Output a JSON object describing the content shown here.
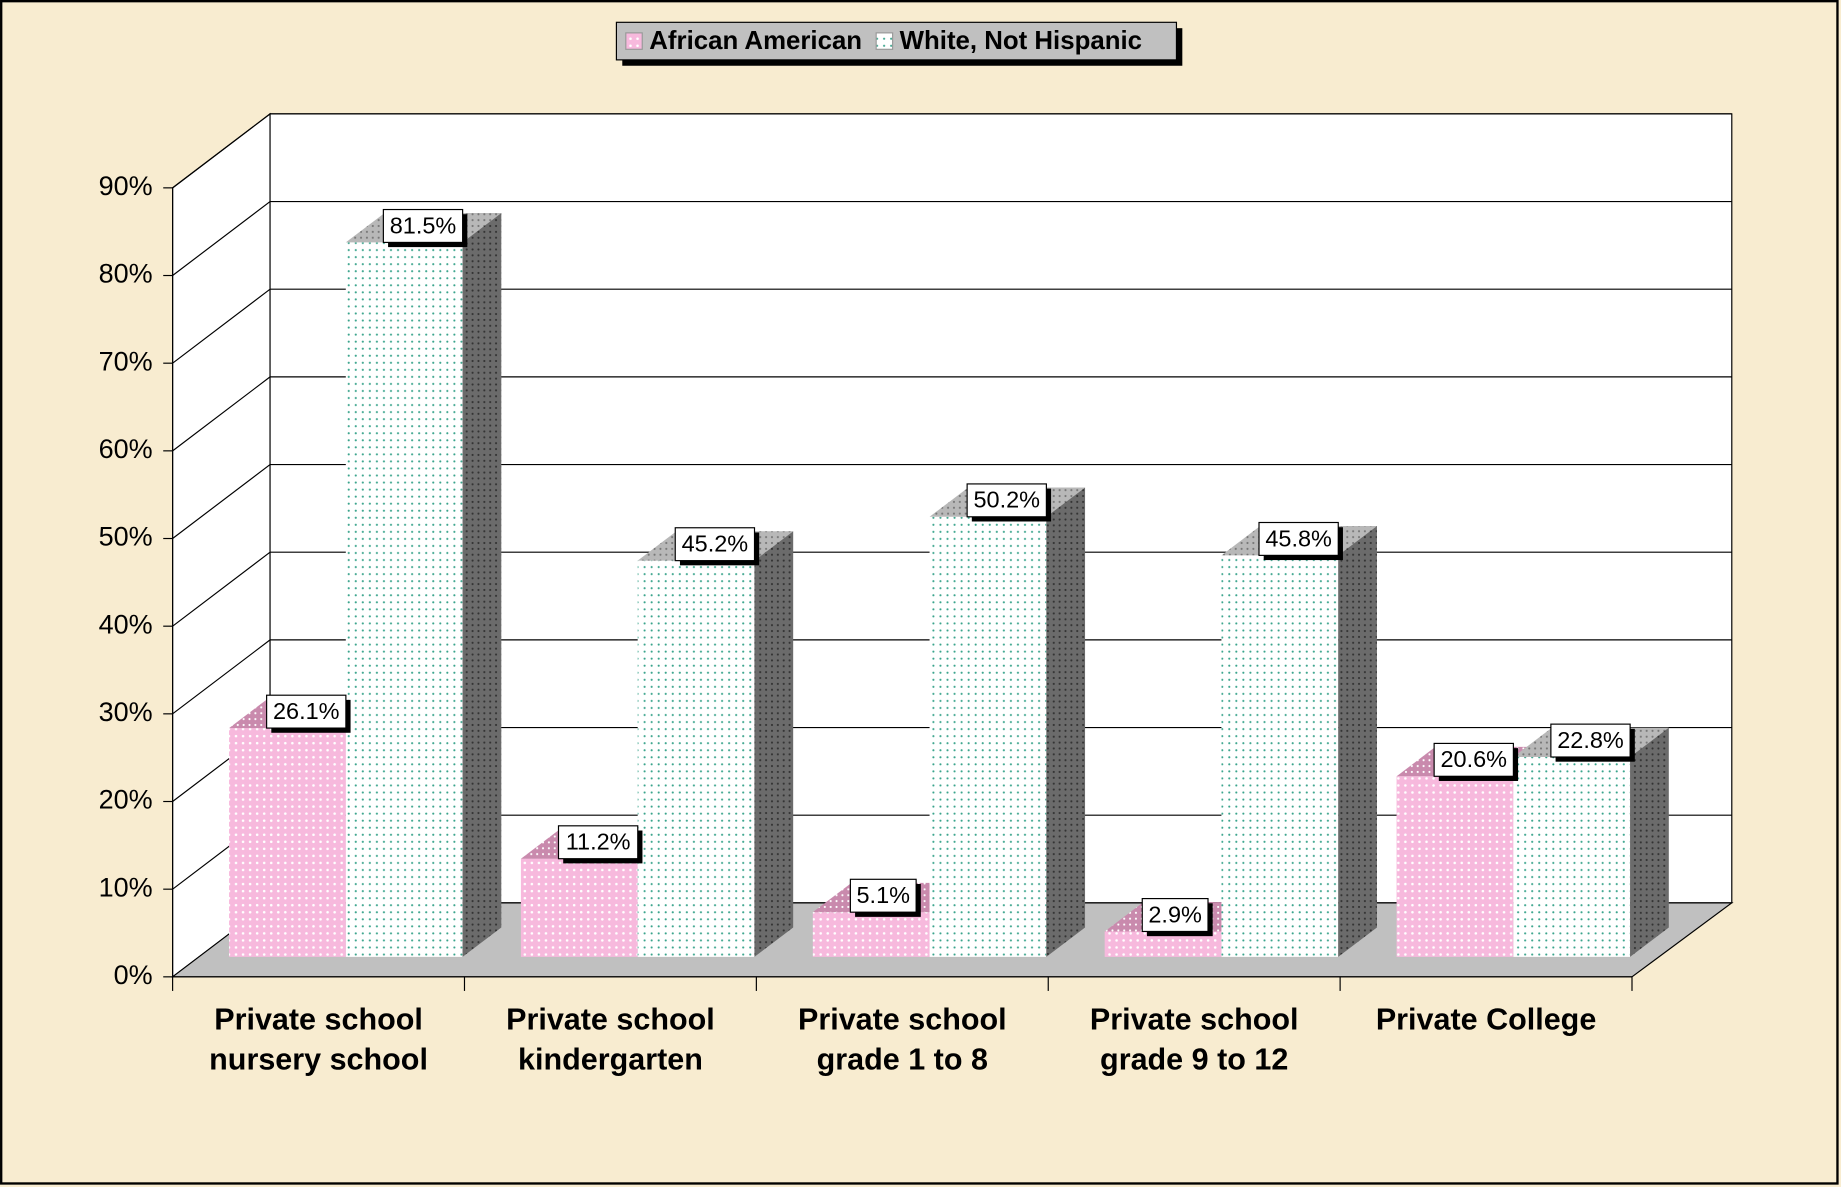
{
  "chart_data": {
    "type": "bar3d",
    "categories": [
      "Private school\nnursery school",
      "Private school\nkindergarten",
      "Private school\ngrade 1 to 8",
      "Private school\ngrade 9 to 12",
      "Private College"
    ],
    "series": [
      {
        "name": "African American",
        "color": "#f7b9dd",
        "values": [
          26.1,
          11.2,
          5.1,
          2.9,
          20.6
        ],
        "value_labels": [
          "26.1%",
          "11.2%",
          "5.1%",
          "2.9%",
          "20.6%"
        ]
      },
      {
        "name": "White, Not Hispanic",
        "color": "#ffffff",
        "values": [
          81.5,
          45.2,
          50.2,
          45.8,
          22.8
        ],
        "value_labels": [
          "81.5%",
          "45.2%",
          "50.2%",
          "45.8%",
          "22.8%"
        ]
      }
    ],
    "ylim": [
      0,
      90
    ],
    "yticks": [
      {
        "value": 0,
        "label": "0%"
      },
      {
        "value": 10,
        "label": "10%"
      },
      {
        "value": 20,
        "label": "20%"
      },
      {
        "value": 30,
        "label": "30%"
      },
      {
        "value": 40,
        "label": "40%"
      },
      {
        "value": 50,
        "label": "50%"
      },
      {
        "value": 60,
        "label": "60%"
      },
      {
        "value": 70,
        "label": "70%"
      },
      {
        "value": 80,
        "label": "80%"
      },
      {
        "value": 90,
        "label": "90%"
      }
    ],
    "grid": true,
    "legend": "top"
  }
}
